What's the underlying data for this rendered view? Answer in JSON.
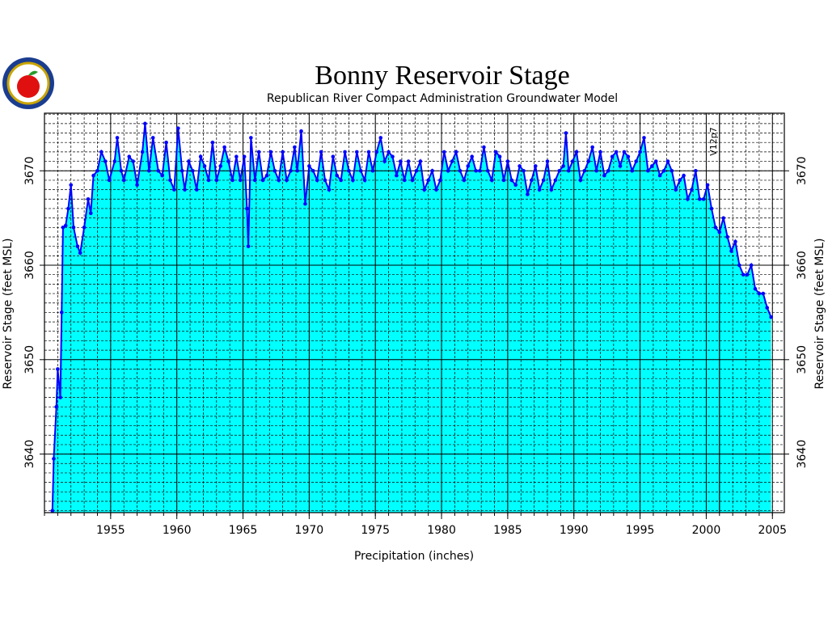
{
  "chart_data": {
    "type": "area",
    "title": "Bonny Reservoir Stage",
    "subtitle": "Republican River Compact Administration Groundwater Model",
    "x_label": "Precipitation (inches)",
    "y_label": "Reservoir Stage (feet MSL)",
    "y2_label": "Reservoir Stage (feet MSL)",
    "annotation": {
      "x": 2001,
      "text": "V12p7"
    },
    "xlim": [
      1950,
      2005.9
    ],
    "ylim": [
      3633.8,
      3676.1
    ],
    "xticks": [
      1955,
      1960,
      1965,
      1970,
      1975,
      1980,
      1985,
      1990,
      1995,
      2000,
      2005
    ],
    "yticks": [
      3640,
      3650,
      3660,
      3670
    ],
    "grid": true,
    "minor_grid_step": {
      "x": 1,
      "y": 1
    },
    "series": [
      {
        "color": "#0000ff",
        "fill": "#00ffff",
        "x": [
          1950.6,
          1950.7,
          1950.9,
          1951.0,
          1951.2,
          1951.3,
          1951.4,
          1951.6,
          1951.8,
          1952.0,
          1952.2,
          1952.5,
          1952.7,
          1953.0,
          1953.3,
          1953.5,
          1953.7,
          1954.0,
          1954.3,
          1954.6,
          1954.9,
          1955.3,
          1955.5,
          1955.8,
          1956.0,
          1956.4,
          1956.7,
          1957.0,
          1957.4,
          1957.6,
          1957.9,
          1958.2,
          1958.6,
          1958.9,
          1959.2,
          1959.5,
          1959.8,
          1960.1,
          1960.4,
          1960.6,
          1960.9,
          1961.2,
          1961.5,
          1961.8,
          1962.1,
          1962.4,
          1962.7,
          1963.0,
          1963.3,
          1963.6,
          1963.9,
          1964.2,
          1964.5,
          1964.8,
          1965.1,
          1965.3,
          1965.4,
          1965.6,
          1965.9,
          1966.2,
          1966.5,
          1966.8,
          1967.1,
          1967.4,
          1967.7,
          1968.0,
          1968.3,
          1968.6,
          1968.9,
          1969.1,
          1969.4,
          1969.7,
          1970.0,
          1970.3,
          1970.6,
          1970.9,
          1971.2,
          1971.5,
          1971.8,
          1972.1,
          1972.4,
          1972.7,
          1973.0,
          1973.3,
          1973.6,
          1973.9,
          1974.2,
          1974.5,
          1974.8,
          1975.1,
          1975.4,
          1975.7,
          1976.0,
          1976.3,
          1976.6,
          1976.9,
          1977.2,
          1977.5,
          1977.8,
          1978.1,
          1978.4,
          1978.7,
          1979.0,
          1979.3,
          1979.6,
          1979.9,
          1980.2,
          1980.5,
          1980.8,
          1981.1,
          1981.4,
          1981.7,
          1982.0,
          1982.3,
          1982.6,
          1982.9,
          1983.2,
          1983.5,
          1983.8,
          1984.1,
          1984.4,
          1984.7,
          1985.0,
          1985.3,
          1985.6,
          1985.9,
          1986.2,
          1986.5,
          1986.8,
          1987.1,
          1987.4,
          1987.7,
          1988.0,
          1988.3,
          1988.6,
          1988.9,
          1989.2,
          1989.4,
          1989.6,
          1989.9,
          1990.2,
          1990.5,
          1990.8,
          1991.1,
          1991.4,
          1991.7,
          1992.0,
          1992.3,
          1992.6,
          1992.9,
          1993.2,
          1993.5,
          1993.8,
          1994.1,
          1994.4,
          1994.7,
          1995.0,
          1995.3,
          1995.6,
          1995.9,
          1996.2,
          1996.5,
          1996.8,
          1997.1,
          1997.4,
          1997.7,
          1998.0,
          1998.3,
          1998.6,
          1998.9,
          1999.2,
          1999.5,
          1999.8,
          2000.1,
          2000.4,
          2000.7,
          2001.0,
          2001.3,
          2001.6,
          2001.9,
          2002.2,
          2002.5,
          2002.8,
          2003.1,
          2003.4,
          2003.7,
          2004.0,
          2004.3,
          2004.6,
          2004.9
        ],
        "values": [
          3634,
          3639.5,
          3645,
          3649,
          3646,
          3655,
          3664,
          3664.2,
          3666,
          3668.5,
          3664,
          3662,
          3661.3,
          3664,
          3667,
          3665.5,
          3669.5,
          3670,
          3672,
          3671,
          3669,
          3671,
          3673.5,
          3670,
          3669,
          3671.5,
          3671,
          3668.5,
          3672,
          3675,
          3670,
          3673.5,
          3670,
          3669.5,
          3673,
          3669,
          3668,
          3674.5,
          3670,
          3668,
          3671,
          3670,
          3668,
          3671.5,
          3670.5,
          3669,
          3673,
          3669,
          3670.5,
          3672.5,
          3671,
          3669,
          3671.5,
          3669,
          3671.5,
          3666,
          3662,
          3673.5,
          3669,
          3672,
          3669,
          3669.5,
          3672,
          3670,
          3669,
          3672,
          3669,
          3670,
          3672.5,
          3670,
          3674.2,
          3666.5,
          3670.5,
          3670,
          3669,
          3672,
          3669,
          3668,
          3671.5,
          3669.5,
          3669,
          3672,
          3670,
          3669,
          3672,
          3670,
          3669,
          3672,
          3670,
          3672,
          3673.5,
          3671,
          3672,
          3671.5,
          3669.5,
          3671,
          3669,
          3671,
          3669,
          3670,
          3671,
          3668,
          3669,
          3670,
          3668,
          3669,
          3672,
          3670,
          3671,
          3672,
          3670,
          3669,
          3670.5,
          3671.5,
          3670,
          3670,
          3672.5,
          3670,
          3669,
          3672,
          3671.5,
          3669,
          3671,
          3669,
          3668.5,
          3670.5,
          3670,
          3667.5,
          3669,
          3670.5,
          3668,
          3669,
          3671,
          3668,
          3669,
          3670,
          3670.5,
          3674,
          3670,
          3671,
          3672,
          3669,
          3670,
          3671,
          3672.5,
          3670,
          3672,
          3669.5,
          3670,
          3671.5,
          3672,
          3670.5,
          3672,
          3671.5,
          3670,
          3671,
          3672,
          3673.5,
          3670,
          3670.5,
          3671,
          3669.5,
          3670,
          3671,
          3670,
          3668,
          3669,
          3669.5,
          3667,
          3668,
          3670,
          3667,
          3667,
          3668.5,
          3666,
          3664,
          3663.5,
          3665,
          3663,
          3661.5,
          3662.5,
          3660,
          3659,
          3659,
          3660,
          3657.5,
          3657,
          3657,
          3655.5,
          3654.5
        ]
      }
    ]
  }
}
